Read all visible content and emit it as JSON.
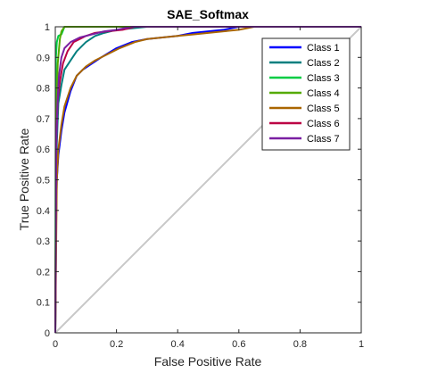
{
  "chart_data": {
    "type": "line",
    "title": "SAE_Softmax",
    "xlabel": "False Positive Rate",
    "ylabel": "True Positive Rate",
    "xlim": [
      0,
      1
    ],
    "ylim": [
      0,
      1
    ],
    "xticks": [
      "0",
      "0.2",
      "0.4",
      "0.6",
      "0.8",
      "1"
    ],
    "yticks": [
      "0",
      "0.1",
      "0.2",
      "0.3",
      "0.4",
      "0.5",
      "0.6",
      "0.7",
      "0.8",
      "0.9",
      "1"
    ],
    "grid": false,
    "legend_position": "top-right",
    "diagonal_color": "#c8c8c8",
    "series": [
      {
        "name": "Class 1",
        "color": "#0000ff",
        "x": [
          0,
          0.002,
          0.005,
          0.01,
          0.02,
          0.03,
          0.05,
          0.07,
          0.09,
          0.12,
          0.15,
          0.2,
          0.25,
          0.3,
          0.35,
          0.4,
          0.45,
          0.5,
          0.55,
          0.6,
          1.0
        ],
        "y": [
          0,
          0.35,
          0.5,
          0.58,
          0.66,
          0.72,
          0.79,
          0.84,
          0.86,
          0.88,
          0.9,
          0.93,
          0.95,
          0.96,
          0.965,
          0.97,
          0.98,
          0.985,
          0.99,
          1.0,
          1.0
        ]
      },
      {
        "name": "Class 2",
        "color": "#007f7f",
        "x": [
          0,
          0.005,
          0.01,
          0.02,
          0.03,
          0.05,
          0.07,
          0.1,
          0.13,
          0.16,
          0.2,
          0.25,
          0.3,
          1.0
        ],
        "y": [
          0,
          0.62,
          0.75,
          0.81,
          0.86,
          0.89,
          0.92,
          0.95,
          0.97,
          0.98,
          0.99,
          0.995,
          1.0,
          1.0
        ]
      },
      {
        "name": "Class 3",
        "color": "#00cc44",
        "x": [
          0,
          0.002,
          0.005,
          0.01,
          0.02,
          0.03,
          1.0
        ],
        "y": [
          0,
          0.9,
          0.95,
          0.97,
          0.975,
          1.0,
          1.0
        ]
      },
      {
        "name": "Class 4",
        "color": "#55aa00",
        "x": [
          0,
          0.003,
          0.008,
          0.015,
          0.02,
          0.03,
          1.0
        ],
        "y": [
          0,
          0.7,
          0.88,
          0.96,
          0.985,
          1.0,
          1.0
        ]
      },
      {
        "name": "Class 5",
        "color": "#aa6600",
        "x": [
          0,
          0.005,
          0.01,
          0.02,
          0.03,
          0.05,
          0.07,
          0.1,
          0.13,
          0.17,
          0.21,
          0.26,
          0.3,
          0.35,
          0.4,
          0.45,
          0.5,
          0.55,
          0.6,
          0.65,
          1.0
        ],
        "y": [
          0,
          0.5,
          0.6,
          0.68,
          0.74,
          0.8,
          0.84,
          0.87,
          0.89,
          0.91,
          0.93,
          0.95,
          0.96,
          0.965,
          0.97,
          0.975,
          0.98,
          0.985,
          0.99,
          1.0,
          1.0
        ]
      },
      {
        "name": "Class 6",
        "color": "#bb0044",
        "x": [
          0,
          0.003,
          0.008,
          0.015,
          0.025,
          0.04,
          0.06,
          0.08,
          0.1,
          0.13,
          0.17,
          0.22,
          0.26,
          1.0
        ],
        "y": [
          0,
          0.62,
          0.76,
          0.82,
          0.88,
          0.92,
          0.95,
          0.96,
          0.97,
          0.98,
          0.985,
          0.99,
          1.0,
          1.0
        ]
      },
      {
        "name": "Class 7",
        "color": "#7a1fa2",
        "x": [
          0,
          0.003,
          0.007,
          0.012,
          0.02,
          0.03,
          0.05,
          0.08,
          0.12,
          0.16,
          0.2,
          0.25,
          1.0
        ],
        "y": [
          0,
          0.6,
          0.75,
          0.84,
          0.9,
          0.93,
          0.95,
          0.965,
          0.975,
          0.985,
          0.99,
          1.0,
          1.0
        ]
      }
    ]
  }
}
